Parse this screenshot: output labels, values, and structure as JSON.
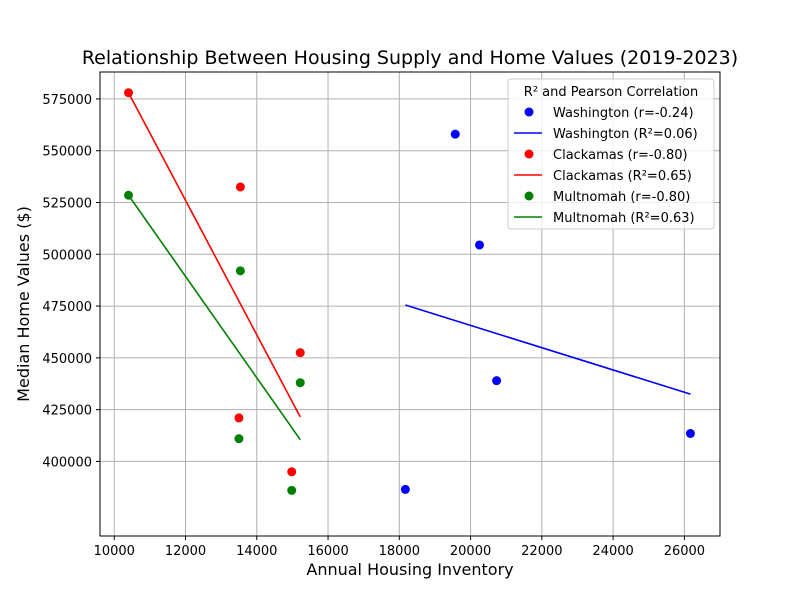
{
  "chart_data": {
    "type": "scatter",
    "title": "Relationship Between Housing Supply and Home Values (2019-2023)",
    "xlabel": "Annual Housing Inventory",
    "ylabel": "Median Home Values ($)",
    "xlim": [
      9600,
      27000
    ],
    "ylim": [
      364000,
      588000
    ],
    "xticks": [
      10000,
      12000,
      14000,
      16000,
      18000,
      20000,
      22000,
      24000,
      26000
    ],
    "yticks": [
      400000,
      425000,
      450000,
      475000,
      500000,
      525000,
      550000,
      575000
    ],
    "grid": true,
    "legend": {
      "title": "R² and Pearson Correlation",
      "location": "upper right"
    },
    "series": [
      {
        "name": "Washington (r=-0.24)",
        "fit_name": "Washington (R²=0.06)",
        "color": "#0000ff",
        "points": [
          {
            "x": 18170,
            "y": 386500
          },
          {
            "x": 19570,
            "y": 558000
          },
          {
            "x": 20250,
            "y": 504500
          },
          {
            "x": 20730,
            "y": 439000
          },
          {
            "x": 26170,
            "y": 413500
          }
        ],
        "fit": [
          {
            "x": 18170,
            "y": 475500
          },
          {
            "x": 26170,
            "y": 432500
          }
        ]
      },
      {
        "name": "Clackamas (r=-0.80)",
        "fit_name": "Clackamas (R²=0.65)",
        "color": "#ff0000",
        "points": [
          {
            "x": 10400,
            "y": 578000
          },
          {
            "x": 13540,
            "y": 532500
          },
          {
            "x": 13500,
            "y": 421000
          },
          {
            "x": 14980,
            "y": 395000
          },
          {
            "x": 15220,
            "y": 452500
          }
        ],
        "fit": [
          {
            "x": 10400,
            "y": 578000
          },
          {
            "x": 15220,
            "y": 421500
          }
        ]
      },
      {
        "name": "Multnomah (r=-0.80)",
        "fit_name": "Multnomah (R²=0.63)",
        "color": "#008000",
        "points": [
          {
            "x": 10400,
            "y": 528500
          },
          {
            "x": 13540,
            "y": 492000
          },
          {
            "x": 13500,
            "y": 411000
          },
          {
            "x": 14980,
            "y": 386000
          },
          {
            "x": 15220,
            "y": 438000
          }
        ],
        "fit": [
          {
            "x": 10400,
            "y": 528500
          },
          {
            "x": 15220,
            "y": 410500
          }
        ]
      }
    ]
  }
}
